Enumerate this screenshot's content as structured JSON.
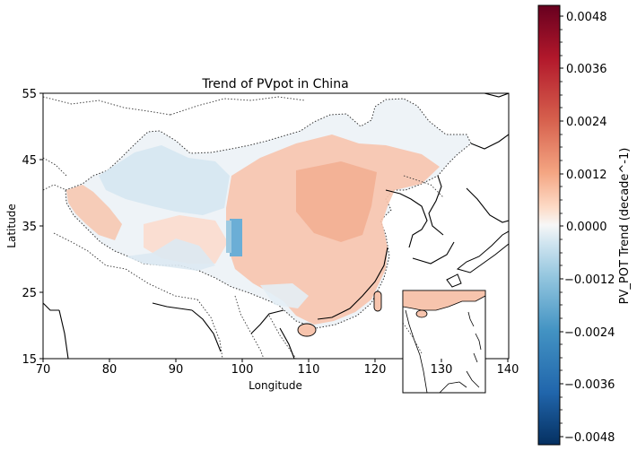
{
  "title": "Trend of PVpot in China",
  "x_axis": {
    "label": "Longitude",
    "ticks": [
      "70",
      "80",
      "90",
      "100",
      "110",
      "120",
      "130",
      "140"
    ]
  },
  "y_axis": {
    "label": "Latitude",
    "ticks": [
      "55",
      "45",
      "35",
      "25",
      "15"
    ]
  },
  "colorbar": {
    "label": "PV_POT Trend (decade^-1)",
    "ticks": [
      "0.0048",
      "0.0036",
      "0.0024",
      "0.0012",
      "0.0000",
      "−0.0012",
      "−0.0024",
      "−0.0036",
      "−0.0048"
    ],
    "colormap": "RdBu_r",
    "range": [
      -0.005,
      0.005
    ]
  },
  "colors": {
    "positive_trend": "#f4a582",
    "negative_trend": "#92c5de",
    "neutral": "#f7f7f7",
    "coastline": "#000000",
    "border": "#333333"
  },
  "inset": {
    "description_tag": "south-china-sea-inset"
  }
}
